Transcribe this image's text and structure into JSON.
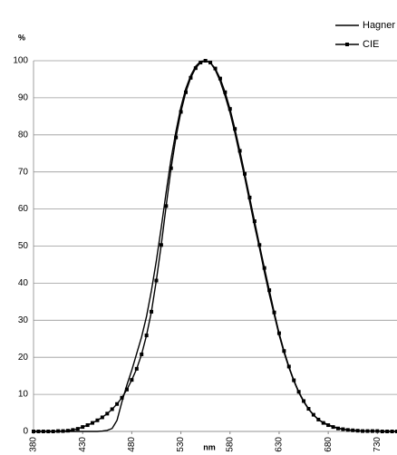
{
  "chart_data": {
    "type": "line",
    "ylabel": "%",
    "xlabel": "nm",
    "x": [
      380,
      385,
      390,
      395,
      400,
      405,
      410,
      415,
      420,
      425,
      430,
      435,
      440,
      445,
      450,
      455,
      460,
      465,
      470,
      475,
      480,
      485,
      490,
      495,
      500,
      505,
      510,
      515,
      520,
      525,
      530,
      535,
      540,
      545,
      550,
      555,
      560,
      565,
      570,
      575,
      580,
      585,
      590,
      595,
      600,
      605,
      610,
      615,
      620,
      625,
      630,
      635,
      640,
      645,
      650,
      655,
      660,
      665,
      670,
      675,
      680,
      685,
      690,
      695,
      700,
      705,
      710,
      715,
      720,
      725,
      730,
      735,
      740,
      745,
      750
    ],
    "series": [
      {
        "name": "Hagner",
        "color": "#000000",
        "values": [
          0,
          0,
          0,
          0,
          0,
          0,
          0,
          0,
          0,
          0,
          0,
          0,
          0,
          0,
          0.1,
          0.3,
          0.8,
          3,
          8,
          12.5,
          16.5,
          21,
          25.5,
          31,
          38,
          46,
          55,
          64.5,
          73.5,
          81,
          87.5,
          92.5,
          96,
          98.5,
          99.8,
          100,
          99.5,
          97.5,
          94.5,
          90.5,
          86,
          80.5,
          74.5,
          68.5,
          62,
          55.5,
          49.5,
          43,
          37,
          31.5,
          26,
          21.3,
          17.2,
          13.6,
          10.5,
          8,
          6,
          4.4,
          3.2,
          2.4,
          1.8,
          1.3,
          0.9,
          0.6,
          0.4,
          0.3,
          0.2,
          0.1,
          0.1,
          0.1,
          0.1,
          0,
          0,
          0,
          0
        ]
      },
      {
        "name": "CIE",
        "color": "#000000",
        "marker": "square",
        "values": [
          0,
          0,
          0,
          0,
          0,
          0.1,
          0.1,
          0.2,
          0.4,
          0.7,
          1.2,
          1.7,
          2.3,
          3,
          3.8,
          4.8,
          6,
          7.4,
          9.1,
          11.3,
          13.9,
          16.9,
          20.8,
          25.9,
          32.3,
          40.7,
          50.3,
          60.8,
          71,
          79.3,
          86.2,
          91.5,
          95.4,
          98,
          99.5,
          100,
          99.5,
          97.9,
          95.2,
          91.5,
          87,
          81.6,
          75.7,
          69.5,
          63.1,
          56.7,
          50.3,
          44.1,
          38.1,
          32.1,
          26.5,
          21.7,
          17.5,
          13.8,
          10.7,
          8.2,
          6.1,
          4.5,
          3.2,
          2.3,
          1.7,
          1.2,
          0.8,
          0.6,
          0.4,
          0.3,
          0.2,
          0.1,
          0.1,
          0.1,
          0.1,
          0,
          0,
          0,
          0
        ]
      }
    ],
    "xlim": [
      380,
      750
    ],
    "xticks": [
      380,
      430,
      480,
      530,
      580,
      630,
      680,
      730
    ],
    "ylim": [
      0,
      100
    ],
    "yticks": [
      0,
      10,
      20,
      30,
      40,
      50,
      60,
      70,
      80,
      90,
      100
    ],
    "grid": true,
    "legend": "top-right"
  }
}
